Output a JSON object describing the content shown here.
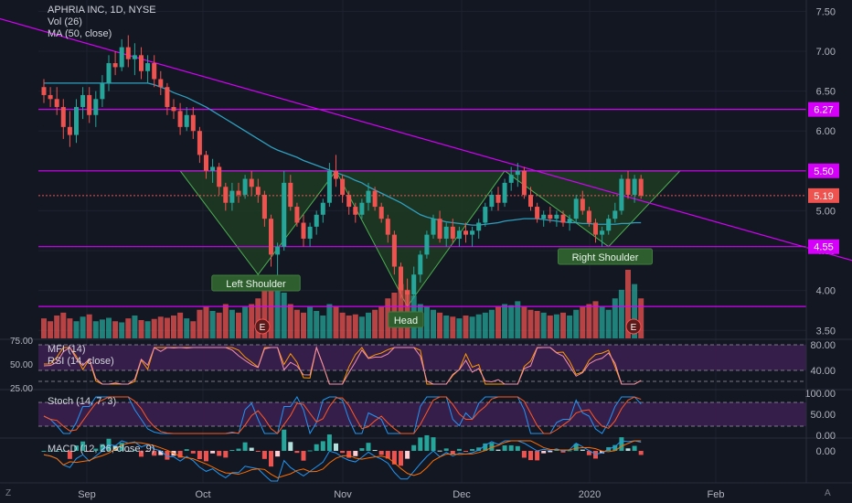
{
  "header": {
    "symbol_line": "APHRIA INC, 1D, NYSE",
    "vol_label": "Vol (26)",
    "ma_label": "MA (50, close)"
  },
  "colors": {
    "background": "#131722",
    "up": "#26a69a",
    "down": "#ef5350",
    "level_line": "#d500f9",
    "ma_line": "#2f9fbf",
    "pattern_fill": "#1f3b22",
    "pattern_stroke": "#4caf50",
    "osc_band": "#3b1f4f",
    "label_bg": "#2e5e2e"
  },
  "price_axis": {
    "ticks": [
      "7.50",
      "7.00",
      "6.50",
      "6.00",
      "5.50",
      "5.00",
      "4.50",
      "4.00",
      "3.50"
    ]
  },
  "badges": [
    {
      "text": "6.27",
      "kind": "level"
    },
    {
      "text": "5.50",
      "kind": "level"
    },
    {
      "text": "5.19",
      "kind": "last"
    },
    {
      "text": "4.55",
      "kind": "level"
    }
  ],
  "time_axis": [
    "Sep",
    "Oct",
    "Nov",
    "Dec",
    "2020",
    "Feb"
  ],
  "pattern_labels": {
    "left": "Left Shoulder",
    "head": "Head",
    "right": "Right Shoulder"
  },
  "earnings_marker": "E",
  "indicators": {
    "mfi_label": "MFI (14)",
    "rsi_label": "RSI (14, close)",
    "stoch_label": "Stoch (14, 7, 3)",
    "macd_label": "MACD (12, 26, close, 9)"
  },
  "osc_axes": {
    "rsi": [
      "80.00",
      "40.00"
    ],
    "rsi_left": [
      "75.00",
      "50.00",
      "25.00"
    ],
    "stoch": [
      "100.00",
      "50.00",
      "0.00"
    ],
    "macd": [
      "0.00"
    ]
  },
  "corner_marks": {
    "left": "Z",
    "right": "A"
  },
  "chart_data": {
    "type": "candlestick",
    "title": "APHRIA INC, 1D, NYSE",
    "ylim": [
      3.4,
      7.55
    ],
    "levels": [
      6.27,
      5.5,
      4.55,
      3.8
    ],
    "last_price_line": 5.19,
    "trendline": {
      "from": [
        0,
        7.25
      ],
      "to": [
        117,
        4.55
      ]
    },
    "pattern": "inverse head and shoulders",
    "ohlc": [
      [
        6.55,
        6.65,
        6.35,
        6.45
      ],
      [
        6.45,
        6.55,
        6.3,
        6.4
      ],
      [
        6.4,
        6.55,
        6.2,
        6.3
      ],
      [
        6.3,
        6.4,
        5.9,
        6.05
      ],
      [
        6.05,
        6.25,
        5.8,
        5.95
      ],
      [
        5.95,
        6.4,
        5.85,
        6.3
      ],
      [
        6.3,
        6.55,
        6.15,
        6.45
      ],
      [
        6.45,
        6.55,
        6.1,
        6.2
      ],
      [
        6.2,
        6.5,
        6.05,
        6.4
      ],
      [
        6.4,
        6.7,
        6.3,
        6.6
      ],
      [
        6.6,
        6.95,
        6.5,
        6.85
      ],
      [
        6.85,
        7.0,
        6.7,
        6.8
      ],
      [
        6.8,
        7.15,
        6.75,
        7.05
      ],
      [
        7.05,
        7.2,
        6.8,
        6.9
      ],
      [
        6.9,
        7.1,
        6.7,
        6.95
      ],
      [
        6.95,
        7.05,
        6.65,
        6.75
      ],
      [
        6.75,
        6.95,
        6.6,
        6.85
      ],
      [
        6.85,
        6.95,
        6.55,
        6.65
      ],
      [
        6.65,
        6.75,
        6.45,
        6.55
      ],
      [
        6.55,
        6.6,
        6.2,
        6.3
      ],
      [
        6.3,
        6.4,
        6.15,
        6.25
      ],
      [
        6.25,
        6.35,
        5.95,
        6.05
      ],
      [
        6.05,
        6.3,
        6.0,
        6.2
      ],
      [
        6.2,
        6.3,
        5.9,
        6.0
      ],
      [
        6.0,
        6.05,
        5.6,
        5.7
      ],
      [
        5.7,
        5.75,
        5.4,
        5.5
      ],
      [
        5.5,
        5.65,
        5.35,
        5.55
      ],
      [
        5.55,
        5.6,
        5.2,
        5.3
      ],
      [
        5.3,
        5.35,
        5.0,
        5.1
      ],
      [
        5.1,
        5.35,
        5.0,
        5.25
      ],
      [
        5.25,
        5.35,
        5.1,
        5.2
      ],
      [
        5.2,
        5.45,
        5.15,
        5.4
      ],
      [
        5.4,
        5.5,
        5.2,
        5.3
      ],
      [
        5.3,
        5.4,
        5.1,
        5.2
      ],
      [
        5.2,
        5.25,
        4.8,
        4.9
      ],
      [
        4.9,
        4.95,
        4.3,
        4.45
      ],
      [
        4.45,
        4.6,
        4.15,
        4.55
      ],
      [
        4.55,
        5.5,
        4.5,
        5.35
      ],
      [
        5.35,
        5.45,
        5.0,
        5.05
      ],
      [
        5.05,
        5.1,
        4.8,
        4.85
      ],
      [
        4.85,
        4.95,
        4.55,
        4.65
      ],
      [
        4.65,
        4.85,
        4.55,
        4.8
      ],
      [
        4.8,
        5.0,
        4.7,
        4.95
      ],
      [
        4.95,
        5.15,
        4.85,
        5.1
      ],
      [
        5.1,
        5.6,
        5.05,
        5.5
      ],
      [
        5.5,
        5.7,
        5.3,
        5.4
      ],
      [
        5.4,
        5.45,
        5.1,
        5.2
      ],
      [
        5.2,
        5.25,
        4.95,
        5.05
      ],
      [
        5.05,
        5.1,
        4.85,
        4.95
      ],
      [
        4.95,
        5.15,
        4.9,
        5.1
      ],
      [
        5.1,
        5.35,
        5.0,
        5.25
      ],
      [
        5.25,
        5.3,
        5.0,
        5.05
      ],
      [
        5.05,
        5.1,
        4.85,
        4.9
      ],
      [
        4.9,
        4.95,
        4.6,
        4.7
      ],
      [
        4.7,
        4.75,
        4.2,
        4.3
      ],
      [
        4.3,
        4.35,
        3.9,
        4.0
      ],
      [
        4.0,
        4.15,
        3.8,
        3.95
      ],
      [
        3.95,
        4.3,
        3.9,
        4.2
      ],
      [
        4.2,
        4.5,
        4.1,
        4.45
      ],
      [
        4.45,
        4.75,
        4.4,
        4.7
      ],
      [
        4.7,
        4.95,
        4.65,
        4.9
      ],
      [
        4.9,
        5.0,
        4.6,
        4.65
      ],
      [
        4.65,
        4.85,
        4.55,
        4.8
      ],
      [
        4.8,
        4.9,
        4.6,
        4.65
      ],
      [
        4.65,
        4.8,
        4.55,
        4.75
      ],
      [
        4.75,
        4.85,
        4.6,
        4.7
      ],
      [
        4.7,
        4.8,
        4.55,
        4.75
      ],
      [
        4.75,
        4.9,
        4.65,
        4.85
      ],
      [
        4.85,
        5.1,
        4.8,
        5.05
      ],
      [
        5.05,
        5.25,
        5.0,
        5.2
      ],
      [
        5.2,
        5.3,
        5.0,
        5.1
      ],
      [
        5.1,
        5.4,
        5.05,
        5.35
      ],
      [
        5.35,
        5.55,
        5.25,
        5.45
      ],
      [
        5.45,
        5.6,
        5.3,
        5.5
      ],
      [
        5.5,
        5.55,
        5.15,
        5.2
      ],
      [
        5.2,
        5.3,
        5.0,
        5.05
      ],
      [
        5.05,
        5.1,
        4.85,
        4.9
      ],
      [
        4.9,
        5.0,
        4.8,
        4.95
      ],
      [
        4.95,
        5.05,
        4.85,
        4.9
      ],
      [
        4.9,
        5.0,
        4.8,
        4.95
      ],
      [
        4.95,
        5.0,
        4.8,
        4.85
      ],
      [
        4.85,
        4.95,
        4.75,
        4.9
      ],
      [
        4.9,
        5.2,
        4.85,
        5.15
      ],
      [
        5.15,
        5.25,
        4.95,
        5.0
      ],
      [
        5.0,
        5.05,
        4.8,
        4.85
      ],
      [
        4.85,
        4.9,
        4.6,
        4.7
      ],
      [
        4.7,
        4.8,
        4.55,
        4.75
      ],
      [
        4.75,
        4.95,
        4.7,
        4.9
      ],
      [
        4.9,
        5.1,
        4.85,
        5.0
      ],
      [
        5.0,
        5.45,
        4.95,
        5.4
      ],
      [
        5.4,
        5.5,
        5.15,
        5.2
      ],
      [
        5.2,
        5.45,
        5.1,
        5.4
      ],
      [
        5.4,
        5.45,
        5.15,
        5.19
      ]
    ],
    "volume": [
      0.35,
      0.3,
      0.4,
      0.45,
      0.35,
      0.3,
      0.38,
      0.42,
      0.3,
      0.33,
      0.36,
      0.3,
      0.28,
      0.35,
      0.4,
      0.32,
      0.3,
      0.34,
      0.38,
      0.36,
      0.4,
      0.45,
      0.35,
      0.3,
      0.5,
      0.55,
      0.48,
      0.45,
      0.6,
      0.5,
      0.45,
      0.55,
      0.6,
      0.7,
      0.85,
      1.0,
      0.95,
      0.8,
      0.6,
      0.5,
      0.45,
      0.55,
      0.48,
      0.4,
      0.6,
      0.55,
      0.45,
      0.4,
      0.42,
      0.38,
      0.45,
      0.5,
      0.55,
      0.7,
      0.8,
      0.95,
      0.85,
      0.75,
      0.6,
      0.55,
      0.5,
      0.45,
      0.4,
      0.38,
      0.35,
      0.4,
      0.38,
      0.42,
      0.45,
      0.5,
      0.55,
      0.6,
      0.58,
      0.65,
      0.55,
      0.5,
      0.48,
      0.45,
      0.4,
      0.42,
      0.45,
      0.4,
      0.5,
      0.55,
      0.6,
      0.65,
      0.55,
      0.5,
      0.7,
      0.85,
      1.2,
      0.95,
      0.7
    ],
    "ma50": [
      6.6,
      6.6,
      6.6,
      6.6,
      6.6,
      6.6,
      6.6,
      6.6,
      6.6,
      6.6,
      6.6,
      6.6,
      6.6,
      6.6,
      6.6,
      6.6,
      6.6,
      6.58,
      6.55,
      6.52,
      6.48,
      6.45,
      6.42,
      6.38,
      6.34,
      6.3,
      6.25,
      6.2,
      6.15,
      6.1,
      6.05,
      6.0,
      5.95,
      5.9,
      5.85,
      5.8,
      5.76,
      5.73,
      5.7,
      5.67,
      5.63,
      5.6,
      5.57,
      5.54,
      5.51,
      5.48,
      5.45,
      5.42,
      5.38,
      5.35,
      5.3,
      5.26,
      5.22,
      5.18,
      5.14,
      5.1,
      5.05,
      5.0,
      4.95,
      4.92,
      4.9,
      4.88,
      4.86,
      4.85,
      4.84,
      4.83,
      4.82,
      4.82,
      4.83,
      4.84,
      4.85,
      4.87,
      4.88,
      4.89,
      4.9,
      4.9,
      4.9,
      4.89,
      4.88,
      4.87,
      4.86,
      4.85,
      4.85,
      4.84,
      4.84,
      4.83,
      4.83,
      4.83,
      4.83,
      4.84,
      4.84,
      4.85,
      4.85
    ]
  }
}
